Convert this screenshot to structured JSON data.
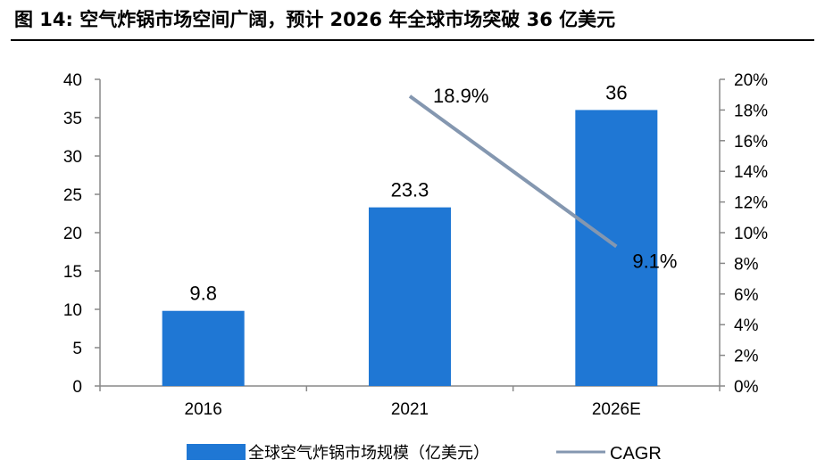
{
  "header": {
    "title": "图 14:  空气炸锅市场空间广阔，预计 2026 年全球市场突破 36 亿美元"
  },
  "chart_data": {
    "type": "bar",
    "categories": [
      "2016",
      "2021",
      "2026E"
    ],
    "series": [
      {
        "name": "全球空气炸锅市场规模（亿美元）",
        "type": "bar",
        "axis": "left",
        "values": [
          9.8,
          23.3,
          36
        ],
        "labels": [
          "9.8",
          "23.3",
          "36"
        ],
        "color": "#1f77d4"
      },
      {
        "name": "CAGR",
        "type": "line",
        "axis": "right",
        "points": [
          {
            "x": 1,
            "y": 18.9,
            "label": "18.9%"
          },
          {
            "x": 2,
            "y": 9.1,
            "label": "9.1%"
          }
        ],
        "color": "#8497b0"
      }
    ],
    "y_left": {
      "min": 0,
      "max": 40,
      "step": 5,
      "ticks": [
        "0",
        "5",
        "10",
        "15",
        "20",
        "25",
        "30",
        "35",
        "40"
      ]
    },
    "y_right": {
      "min": 0,
      "max": 20,
      "step": 2,
      "ticks": [
        "0%",
        "2%",
        "4%",
        "6%",
        "8%",
        "10%",
        "12%",
        "14%",
        "16%",
        "18%",
        "20%"
      ]
    },
    "legend": {
      "position": "bottom"
    },
    "grid": false
  }
}
